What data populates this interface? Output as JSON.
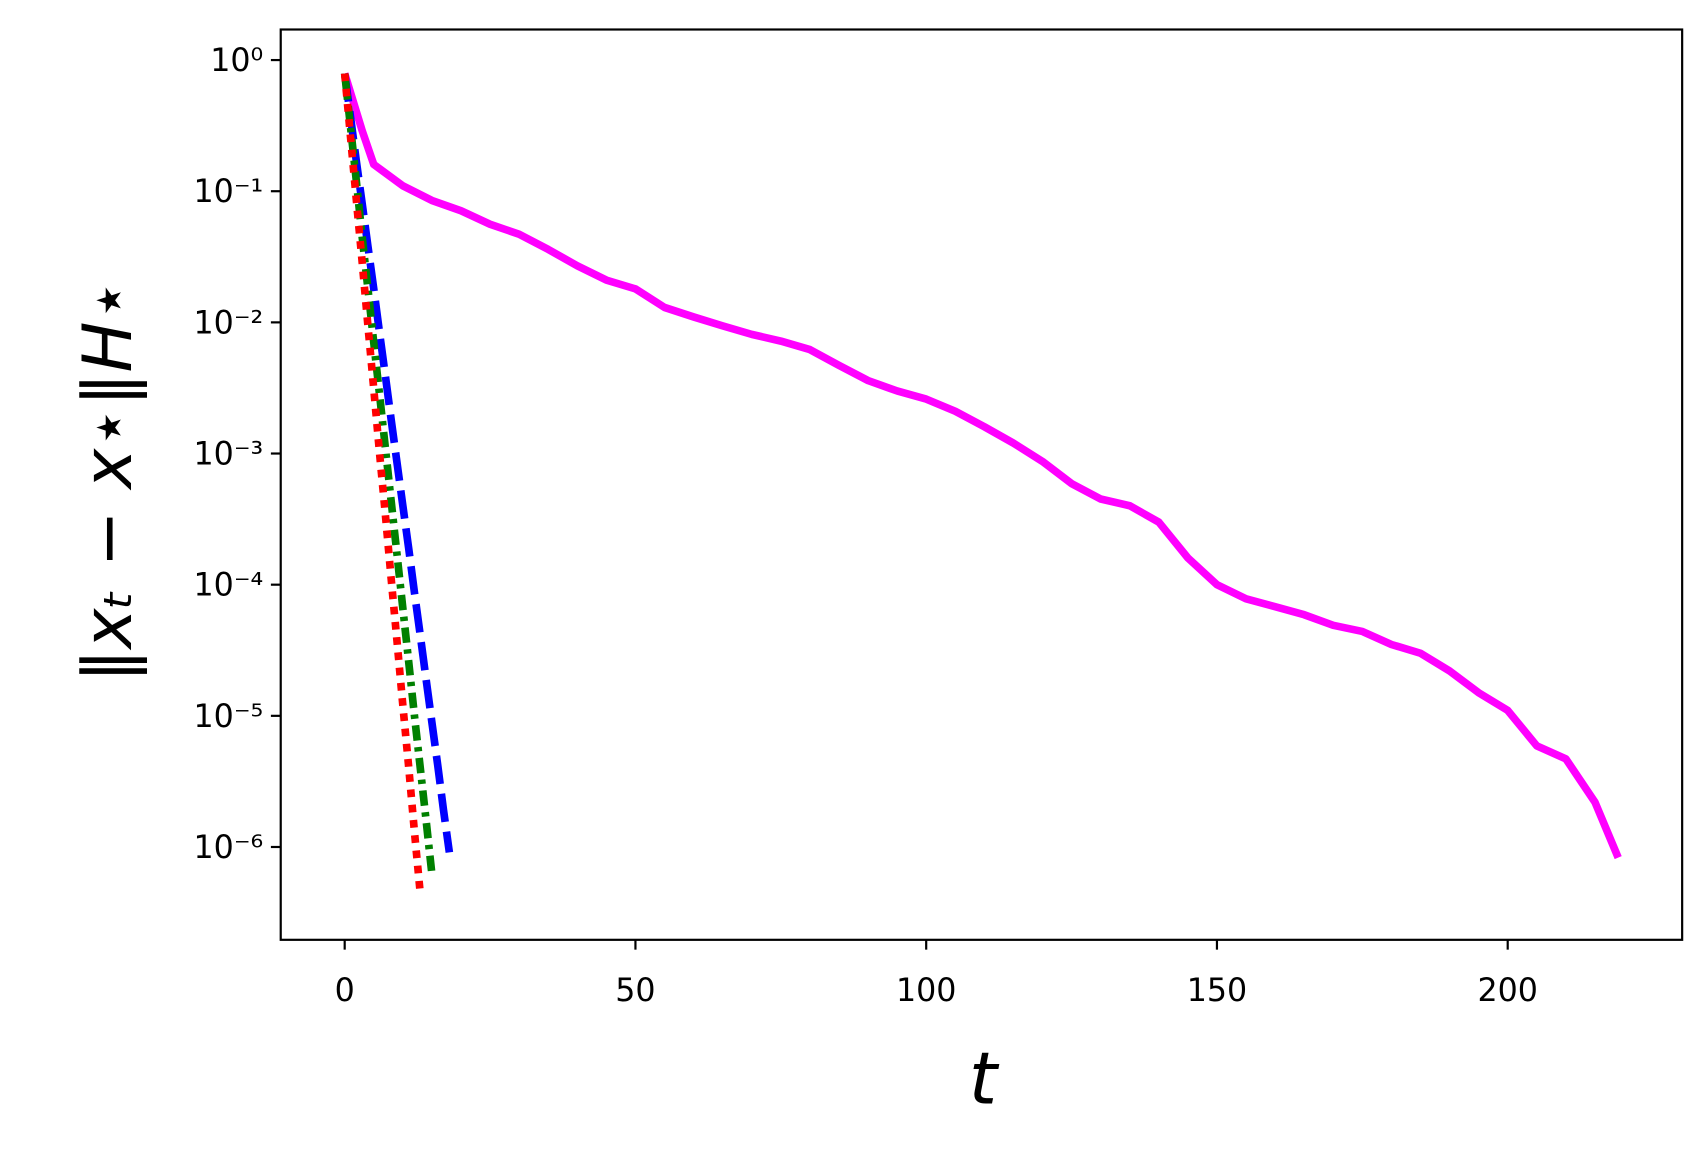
{
  "chart_data": {
    "type": "line",
    "xlabel": "t",
    "ylabel": "‖xₜ − x⋆‖H⋆",
    "xlim": [
      -11,
      230
    ],
    "ylim": [
      1.96e-07,
      1.71
    ],
    "yscale": "log",
    "grid": false,
    "xticks": [
      0,
      50,
      100,
      150,
      200
    ],
    "yticks": [
      {
        "value": 1,
        "label": "10⁰"
      },
      {
        "value": 0.1,
        "label": "10⁻¹"
      },
      {
        "value": 0.01,
        "label": "10⁻²"
      },
      {
        "value": 0.001,
        "label": "10⁻³"
      },
      {
        "value": 0.0001,
        "label": "10⁻⁴"
      },
      {
        "value": 1e-05,
        "label": "10⁻⁵"
      },
      {
        "value": 1e-06,
        "label": "10⁻⁶"
      }
    ],
    "series": [
      {
        "color": "#ff00ff",
        "linestyle": "solid",
        "x": [
          0,
          3,
          5,
          10,
          15,
          20,
          25,
          30,
          35,
          40,
          45,
          50,
          55,
          60,
          65,
          70,
          75,
          80,
          85,
          90,
          95,
          100,
          105,
          110,
          115,
          120,
          125,
          130,
          135,
          140,
          145,
          150,
          155,
          160,
          165,
          170,
          175,
          180,
          185,
          190,
          195,
          200,
          205,
          210,
          215,
          219
        ],
        "values": [
          0.79,
          0.29,
          0.16,
          0.11,
          0.085,
          0.071,
          0.056,
          0.047,
          0.036,
          0.027,
          0.021,
          0.018,
          0.013,
          0.011,
          0.0094,
          0.0081,
          0.0072,
          0.0062,
          0.0047,
          0.0036,
          0.003,
          0.0026,
          0.0021,
          0.0016,
          0.0012,
          0.00087,
          0.00059,
          0.00045,
          0.0004,
          0.0003,
          0.00016,
          0.0001,
          7.8e-05,
          6.8e-05,
          5.9e-05,
          4.9e-05,
          4.4e-05,
          3.5e-05,
          3e-05,
          2.2e-05,
          1.5e-05,
          1.1e-05,
          5.9e-06,
          4.7e-06,
          2.2e-06,
          8.3e-07
        ]
      },
      {
        "color": "#0000ff",
        "linestyle": "dashed",
        "x": [
          0,
          1,
          2,
          3,
          4,
          5,
          6,
          7,
          8,
          9,
          10,
          11,
          12,
          13,
          14,
          15,
          16,
          17,
          18
        ],
        "values": [
          0.79,
          0.37,
          0.17,
          0.081,
          0.038,
          0.018,
          0.0083,
          0.0039,
          0.0018,
          0.00085,
          0.0004,
          0.00019,
          8.7e-05,
          4.1e-05,
          1.9e-05,
          8.9e-06,
          4.2e-06,
          1.9e-06,
          9.1e-07
        ]
      },
      {
        "color": "#008000",
        "linestyle": "dashdot",
        "x": [
          0,
          1,
          2,
          3,
          4,
          5,
          6,
          7,
          8,
          9,
          10,
          11,
          12,
          13,
          14,
          15
        ],
        "values": [
          0.79,
          0.31,
          0.12,
          0.045,
          0.018,
          0.007,
          0.0028,
          0.0011,
          0.00043,
          0.00017,
          6.6e-05,
          2.6e-05,
          1e-05,
          4e-06,
          1.6e-06,
          6.2e-07
        ]
      },
      {
        "color": "#ff0000",
        "linestyle": "dotted",
        "x": [
          0,
          1,
          2,
          3,
          4,
          5,
          6,
          7,
          8,
          9,
          10,
          11,
          12,
          13
        ],
        "values": [
          0.79,
          0.26,
          0.086,
          0.029,
          0.0094,
          0.0031,
          0.001,
          0.00034,
          0.00011,
          3.7e-05,
          1.2e-05,
          4.1e-06,
          1.3e-06,
          4.4e-07
        ]
      }
    ]
  }
}
